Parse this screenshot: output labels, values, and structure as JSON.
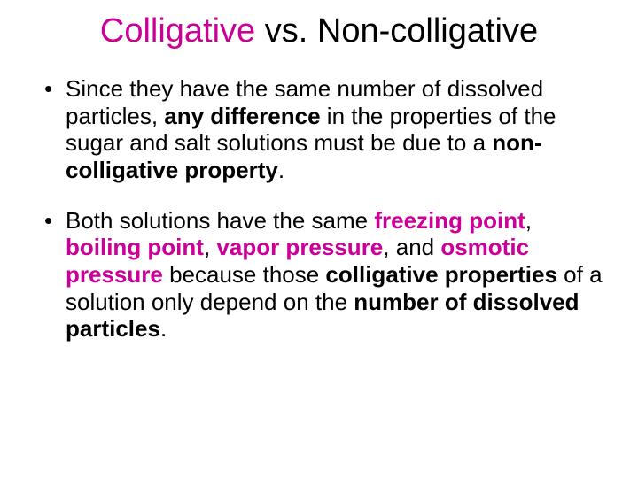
{
  "title": {
    "part1": "Colligative",
    "part2": " vs. Non-colligative",
    "fontsize": 38,
    "color_part1": "#cc0099",
    "color_part2": "#000000"
  },
  "body": {
    "fontsize": 26,
    "lineheight": 1.18,
    "color_plain": "#000000",
    "color_highlight": "#cc0099"
  },
  "bullets": [
    {
      "runs": [
        {
          "t": "Since they have the same number of dissolved particles, "
        },
        {
          "t": "any difference",
          "bold": true
        },
        {
          "t": " in the properties of the sugar and salt solutions must be due to a "
        },
        {
          "t": "non-colligative property",
          "bold": true
        },
        {
          "t": "."
        }
      ]
    },
    {
      "runs": [
        {
          "t": "Both solutions have the same "
        },
        {
          "t": "freezing point",
          "bold": true,
          "colored": true
        },
        {
          "t": ", "
        },
        {
          "t": "boiling point",
          "bold": true,
          "colored": true
        },
        {
          "t": ", "
        },
        {
          "t": "vapor pressure",
          "bold": true,
          "colored": true
        },
        {
          "t": ", and "
        },
        {
          "t": "osmotic pressure",
          "bold": true,
          "colored": true
        },
        {
          "t": " because those "
        },
        {
          "t": "colligative properties",
          "bold": true
        },
        {
          "t": " of a solution only depend on the "
        },
        {
          "t": "number of dissolved particles",
          "bold": true
        },
        {
          "t": "."
        }
      ]
    }
  ]
}
